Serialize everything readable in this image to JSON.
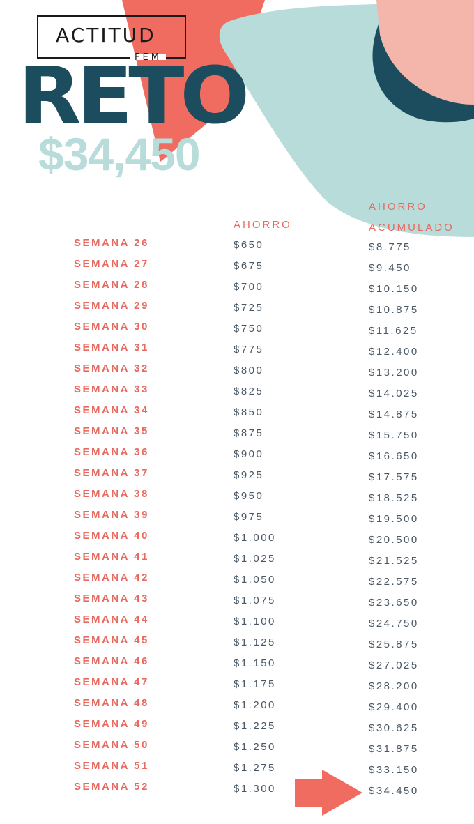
{
  "brand": {
    "name": "ACTITUD",
    "sub": "FEM"
  },
  "title": "RETO",
  "goal_amount": "$34,450",
  "headers": {
    "saving": "AHORRO",
    "cumulative_line1": "AHORRO",
    "cumulative_line2": "ACUMULADO"
  },
  "rows": [
    {
      "week": "SEMANA 26",
      "saving": "$650",
      "cumulative": "$8.775"
    },
    {
      "week": "SEMANA 27",
      "saving": "$675",
      "cumulative": "$9.450"
    },
    {
      "week": "SEMANA 28",
      "saving": "$700",
      "cumulative": "$10.150"
    },
    {
      "week": "SEMANA 29",
      "saving": "$725",
      "cumulative": "$10.875"
    },
    {
      "week": "SEMANA 30",
      "saving": "$750",
      "cumulative": "$11.625"
    },
    {
      "week": "SEMANA 31",
      "saving": "$775",
      "cumulative": "$12.400"
    },
    {
      "week": "SEMANA 32",
      "saving": "$800",
      "cumulative": "$13.200"
    },
    {
      "week": "SEMANA 33",
      "saving": "$825",
      "cumulative": "$14.025"
    },
    {
      "week": "SEMANA 34",
      "saving": "$850",
      "cumulative": "$14.875"
    },
    {
      "week": "SEMANA 35",
      "saving": "$875",
      "cumulative": "$15.750"
    },
    {
      "week": "SEMANA 36",
      "saving": "$900",
      "cumulative": "$16.650"
    },
    {
      "week": "SEMANA 37",
      "saving": "$925",
      "cumulative": "$17.575"
    },
    {
      "week": "SEMANA 38",
      "saving": "$950",
      "cumulative": "$18.525"
    },
    {
      "week": "SEMANA 39",
      "saving": "$975",
      "cumulative": "$19.500"
    },
    {
      "week": "SEMANA 40",
      "saving": "$1.000",
      "cumulative": "$20.500"
    },
    {
      "week": "SEMANA 41",
      "saving": "$1.025",
      "cumulative": "$21.525"
    },
    {
      "week": "SEMANA 42",
      "saving": "$1.050",
      "cumulative": "$22.575"
    },
    {
      "week": "SEMANA 43",
      "saving": "$1.075",
      "cumulative": "$23.650"
    },
    {
      "week": "SEMANA 44",
      "saving": "$1.100",
      "cumulative": "$24.750"
    },
    {
      "week": "SEMANA 45",
      "saving": "$1.125",
      "cumulative": "$25.875"
    },
    {
      "week": "SEMANA 46",
      "saving": "$1.150",
      "cumulative": "$27.025"
    },
    {
      "week": "SEMANA 47",
      "saving": "$1.175",
      "cumulative": "$28.200"
    },
    {
      "week": "SEMANA 48",
      "saving": "$1.200",
      "cumulative": "$29.400"
    },
    {
      "week": "SEMANA 49",
      "saving": "$1.225",
      "cumulative": "$30.625"
    },
    {
      "week": "SEMANA 50",
      "saving": "$1.250",
      "cumulative": "$31.875"
    },
    {
      "week": "SEMANA 51",
      "saving": "$1.275",
      "cumulative": "$33.150"
    },
    {
      "week": "SEMANA 52",
      "saving": "$1.300",
      "cumulative": "$34.450"
    }
  ],
  "colors": {
    "coral": "#f06b60",
    "teal": "#b8dcda",
    "navy": "#1b4d5f",
    "pink": "#f4b5ab",
    "text": "#4a5866"
  }
}
